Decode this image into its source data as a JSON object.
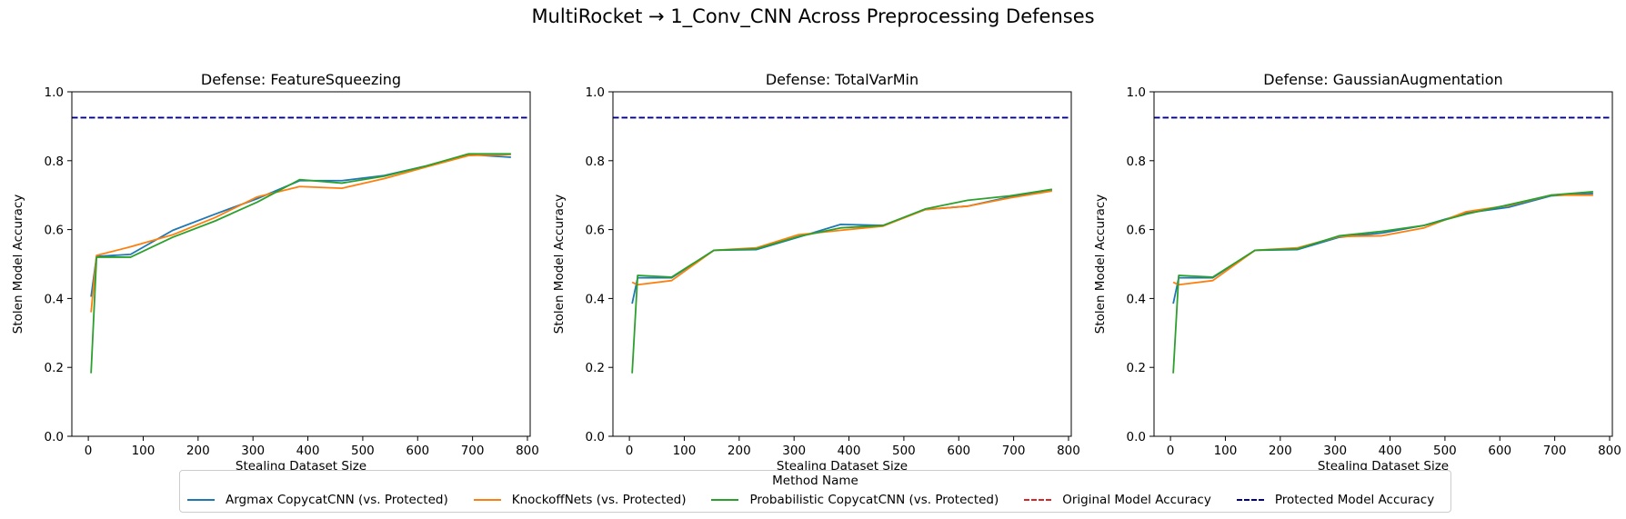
{
  "figure": {
    "suptitle": "MultiRocket → 1_Conv_CNN Across Preprocessing Defenses"
  },
  "legend": {
    "title": "Method Name",
    "items": [
      {
        "label": "Argmax CopycatCNN (vs. Protected)",
        "color": "#1f77b4",
        "style": "solid"
      },
      {
        "label": "KnockoffNets (vs. Protected)",
        "color": "#ff7f0e",
        "style": "solid"
      },
      {
        "label": "Probabilistic CopycatCNN (vs. Protected)",
        "color": "#2ca02c",
        "style": "solid"
      },
      {
        "label": "Original Model Accuracy",
        "color": "#d62728",
        "style": "dashed"
      },
      {
        "label": "Protected Model Accuracy",
        "color": "#00008b",
        "style": "dashed"
      }
    ]
  },
  "chart_data": [
    {
      "type": "line",
      "title": "Defense: FeatureSqueezing",
      "xlabel": "Stealing Dataset Size",
      "ylabel": "Stolen Model Accuracy",
      "xlim": [
        -30,
        805
      ],
      "ylim": [
        0.0,
        1.0
      ],
      "xticks": [
        0,
        100,
        200,
        300,
        400,
        500,
        600,
        700,
        800
      ],
      "yticks": [
        0.0,
        0.2,
        0.4,
        0.6,
        0.8,
        1.0
      ],
      "grid": false,
      "hlines": [
        {
          "name": "Protected Model Accuracy",
          "y": 0.925,
          "color": "#00008b",
          "style": "dashed"
        }
      ],
      "series": [
        {
          "name": "Argmax CopycatCNN (vs. Protected)",
          "color": "#1f77b4",
          "x": [
            5,
            15,
            77,
            154,
            231,
            308,
            385,
            462,
            539,
            616,
            693,
            770
          ],
          "y": [
            0.405,
            0.522,
            0.528,
            0.598,
            0.645,
            0.69,
            0.742,
            0.742,
            0.757,
            0.785,
            0.818,
            0.81
          ]
        },
        {
          "name": "KnockoffNets (vs. Protected)",
          "color": "#ff7f0e",
          "x": [
            5,
            15,
            77,
            154,
            231,
            308,
            385,
            462,
            539,
            616,
            693,
            770
          ],
          "y": [
            0.36,
            0.525,
            0.55,
            0.585,
            0.635,
            0.695,
            0.725,
            0.72,
            0.748,
            0.782,
            0.815,
            0.818
          ]
        },
        {
          "name": "Probabilistic CopycatCNN (vs. Protected)",
          "color": "#2ca02c",
          "x": [
            5,
            15,
            77,
            154,
            231,
            308,
            385,
            462,
            539,
            616,
            693,
            770
          ],
          "y": [
            0.183,
            0.52,
            0.52,
            0.578,
            0.625,
            0.68,
            0.745,
            0.735,
            0.755,
            0.785,
            0.82,
            0.82
          ]
        }
      ]
    },
    {
      "type": "line",
      "title": "Defense: TotalVarMin",
      "xlabel": "Stealing Dataset Size",
      "ylabel": "Stolen Model Accuracy",
      "xlim": [
        -30,
        805
      ],
      "ylim": [
        0.0,
        1.0
      ],
      "xticks": [
        0,
        100,
        200,
        300,
        400,
        500,
        600,
        700,
        800
      ],
      "yticks": [
        0.0,
        0.2,
        0.4,
        0.6,
        0.8,
        1.0
      ],
      "grid": false,
      "hlines": [
        {
          "name": "Protected Model Accuracy",
          "y": 0.925,
          "color": "#00008b",
          "style": "dashed"
        }
      ],
      "series": [
        {
          "name": "Argmax CopycatCNN (vs. Protected)",
          "color": "#1f77b4",
          "x": [
            5,
            15,
            77,
            154,
            231,
            308,
            385,
            462,
            539,
            616,
            693,
            770
          ],
          "y": [
            0.385,
            0.46,
            0.46,
            0.54,
            0.542,
            0.578,
            0.615,
            0.612,
            0.658,
            0.668,
            0.695,
            0.715
          ]
        },
        {
          "name": "KnockoffNets (vs. Protected)",
          "color": "#ff7f0e",
          "x": [
            5,
            15,
            77,
            154,
            231,
            308,
            385,
            462,
            539,
            616,
            693,
            770
          ],
          "y": [
            0.447,
            0.44,
            0.452,
            0.54,
            0.547,
            0.585,
            0.598,
            0.61,
            0.658,
            0.668,
            0.692,
            0.712
          ]
        },
        {
          "name": "Probabilistic CopycatCNN (vs. Protected)",
          "color": "#2ca02c",
          "x": [
            5,
            15,
            77,
            154,
            231,
            308,
            385,
            462,
            539,
            616,
            693,
            770
          ],
          "y": [
            0.183,
            0.467,
            0.462,
            0.54,
            0.544,
            0.58,
            0.605,
            0.612,
            0.66,
            0.685,
            0.698,
            0.717
          ]
        }
      ]
    },
    {
      "type": "line",
      "title": "Defense: GaussianAugmentation",
      "xlabel": "Stealing Dataset Size",
      "ylabel": "Stolen Model Accuracy",
      "xlim": [
        -30,
        805
      ],
      "ylim": [
        0.0,
        1.0
      ],
      "xticks": [
        0,
        100,
        200,
        300,
        400,
        500,
        600,
        700,
        800
      ],
      "yticks": [
        0.0,
        0.2,
        0.4,
        0.6,
        0.8,
        1.0
      ],
      "grid": false,
      "hlines": [
        {
          "name": "Protected Model Accuracy",
          "y": 0.925,
          "color": "#00008b",
          "style": "dashed"
        }
      ],
      "series": [
        {
          "name": "Argmax CopycatCNN (vs. Protected)",
          "color": "#1f77b4",
          "x": [
            5,
            15,
            77,
            154,
            231,
            308,
            385,
            462,
            539,
            616,
            693,
            770
          ],
          "y": [
            0.385,
            0.46,
            0.46,
            0.54,
            0.542,
            0.578,
            0.59,
            0.612,
            0.648,
            0.665,
            0.698,
            0.705
          ]
        },
        {
          "name": "KnockoffNets (vs. Protected)",
          "color": "#ff7f0e",
          "x": [
            5,
            15,
            77,
            154,
            231,
            308,
            385,
            462,
            539,
            616,
            693,
            770
          ],
          "y": [
            0.447,
            0.44,
            0.452,
            0.54,
            0.547,
            0.58,
            0.582,
            0.605,
            0.652,
            0.67,
            0.7,
            0.7
          ]
        },
        {
          "name": "Probabilistic CopycatCNN (vs. Protected)",
          "color": "#2ca02c",
          "x": [
            5,
            15,
            77,
            154,
            231,
            308,
            385,
            462,
            539,
            616,
            693,
            770
          ],
          "y": [
            0.183,
            0.467,
            0.462,
            0.54,
            0.544,
            0.582,
            0.595,
            0.612,
            0.645,
            0.672,
            0.7,
            0.71
          ]
        }
      ]
    }
  ]
}
